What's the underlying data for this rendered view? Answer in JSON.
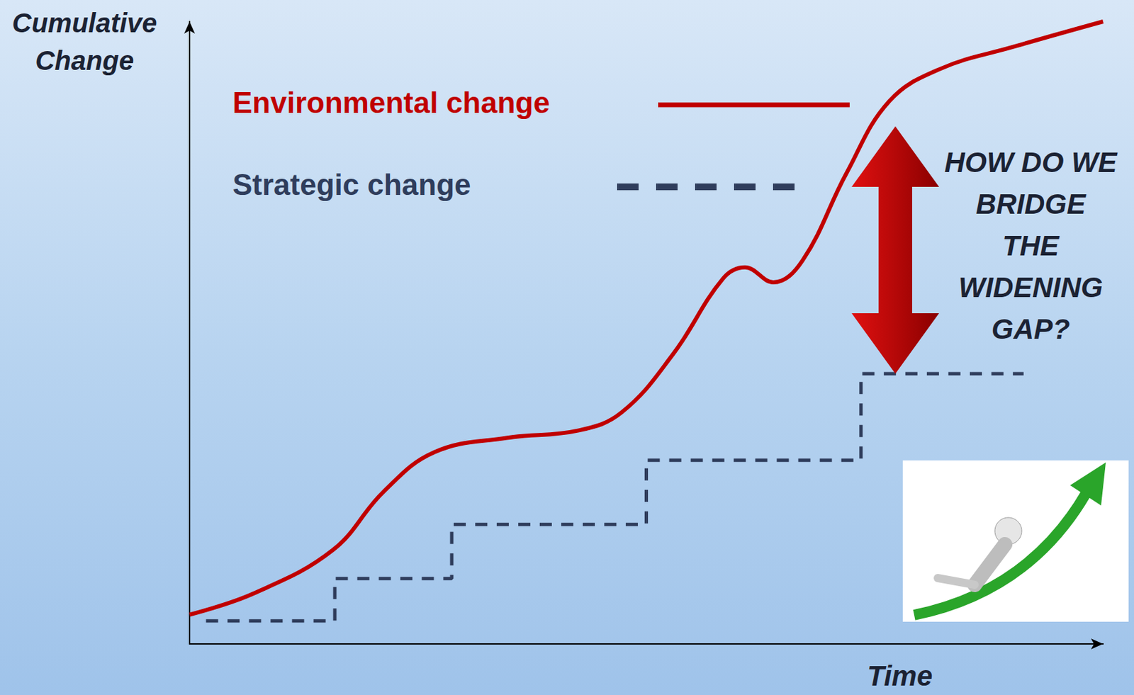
{
  "chart_data": {
    "type": "line",
    "x_label": "Time",
    "y_label": "Cumulative Change",
    "xlim": [
      0,
      100
    ],
    "ylim": [
      0,
      100
    ],
    "tick_labels": false,
    "grid": false,
    "legend": "upper left",
    "annotations": [
      "HOW DO WE BRIDGE THE WIDENING GAP?"
    ],
    "series": [
      {
        "name": "Environmental change",
        "type": "line",
        "color": "#c00000",
        "line_style": "solid",
        "x": [
          0,
          7.0,
          15.7,
          21.2,
          26.8,
          34.7,
          42.6,
          47.3,
          52.9,
          58.4,
          60.8,
          63.9,
          67.1,
          71.9,
          76.6,
          82.2,
          90.1,
          100
        ],
        "values": [
          4.7,
          8.1,
          15.1,
          24.4,
          30.8,
          33.1,
          34.3,
          37.2,
          46.5,
          58.7,
          60.5,
          58.1,
          61.6,
          75.6,
          87.2,
          92.4,
          95.9,
          100
        ]
      },
      {
        "name": "Strategic change",
        "type": "step",
        "color": "#2f3d5c",
        "line_style": "dashed",
        "x": [
          1.8,
          15.9,
          28.7,
          50.0,
          73.5,
          91.3
        ],
        "values": [
          3.7,
          10.5,
          19.2,
          29.5,
          43.4,
          43.4
        ]
      }
    ]
  }
}
